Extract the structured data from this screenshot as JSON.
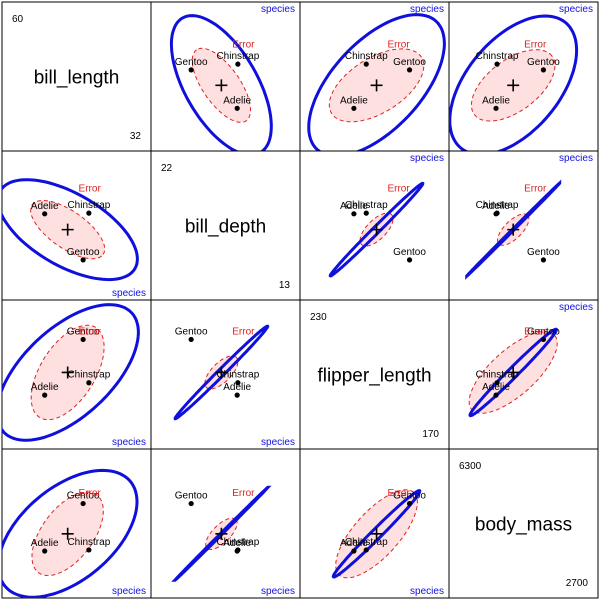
{
  "chart_data": {
    "type": "hypothesis-ellipse-pairs-plot",
    "variables": [
      {
        "name": "bill_length",
        "min_label": "32",
        "max_label": "60",
        "range": [
          32,
          60
        ]
      },
      {
        "name": "bill_depth",
        "min_label": "13",
        "max_label": "22",
        "range": [
          13,
          22
        ]
      },
      {
        "name": "flipper_length",
        "min_label": "170",
        "max_label": "230",
        "range": [
          170,
          230
        ]
      },
      {
        "name": "body_mass",
        "min_label": "2700",
        "max_label": "6300",
        "range": [
          2700,
          6300
        ]
      }
    ],
    "grand_mean": {
      "bill_length": 44,
      "bill_depth": 17.2,
      "flipper_length": 201,
      "body_mass": 4200
    },
    "groups": [
      {
        "name": "Adelie",
        "means": {
          "bill_length": 38.8,
          "bill_depth": 18.35,
          "flipper_length": 190,
          "body_mass": 3700
        }
      },
      {
        "name": "Chinstrap",
        "means": {
          "bill_length": 48.8,
          "bill_depth": 18.4,
          "flipper_length": 196,
          "body_mass": 3730
        }
      },
      {
        "name": "Gentoo",
        "means": {
          "bill_length": 47.5,
          "bill_depth": 15.0,
          "flipper_length": 217,
          "body_mass": 5080
        }
      }
    ],
    "hypothesis_label": "species",
    "error_label": "Error",
    "colors": {
      "hypothesis": "#1010dd",
      "error": "#dd2222",
      "error_fill": "#ffe0e0",
      "points": "#000000",
      "text": "#000000"
    },
    "ellipses": {
      "error": {
        "0-1": {
          "cx": 44,
          "cy": 17.2,
          "a": 9.8,
          "b": 4.2,
          "angle": -35
        },
        "0-2": {
          "cx": 44,
          "cy": 201,
          "a": 12,
          "b": 6.2,
          "angle": 58
        },
        "0-3": {
          "cx": 44,
          "cy": 4200,
          "a": 11,
          "b": 5.8,
          "angle": 53
        },
        "1-2": {
          "cx": 17.2,
          "cy": 201,
          "a": 4.8,
          "b": 2.2,
          "angle": 45
        },
        "1-3": {
          "cx": 17.2,
          "cy": 4200,
          "a": 4.6,
          "b": 2.0,
          "angle": 45
        },
        "2-3": {
          "cx": 201,
          "cy": 4200,
          "a": 12.6,
          "b": 5.1,
          "angle": 48
        }
      },
      "species": {
        "0-1": {
          "cx": 44,
          "cy": 17.2,
          "a": 17.6,
          "b": 8.2,
          "angle": -30
        },
        "0-2": {
          "cx": 44,
          "cy": 201,
          "a": 19.8,
          "b": 10,
          "angle": 43
        },
        "0-3": {
          "cx": 44,
          "cy": 4200,
          "a": 18.5,
          "b": 10.5,
          "angle": 40
        },
        "1-2": {
          "cx": 17.2,
          "cy": 201,
          "a": 14.8,
          "b": 0.75,
          "angle": 45
        },
        "1-3": {
          "cx": 17.2,
          "cy": 4200,
          "a": 14.9,
          "b": 0.18,
          "angle": 45
        },
        "2-3": {
          "cx": 201,
          "cy": 4200,
          "a": 13.8,
          "b": 1.1,
          "angle": 45
        }
      }
    },
    "axes_shown": false,
    "grid": false
  }
}
